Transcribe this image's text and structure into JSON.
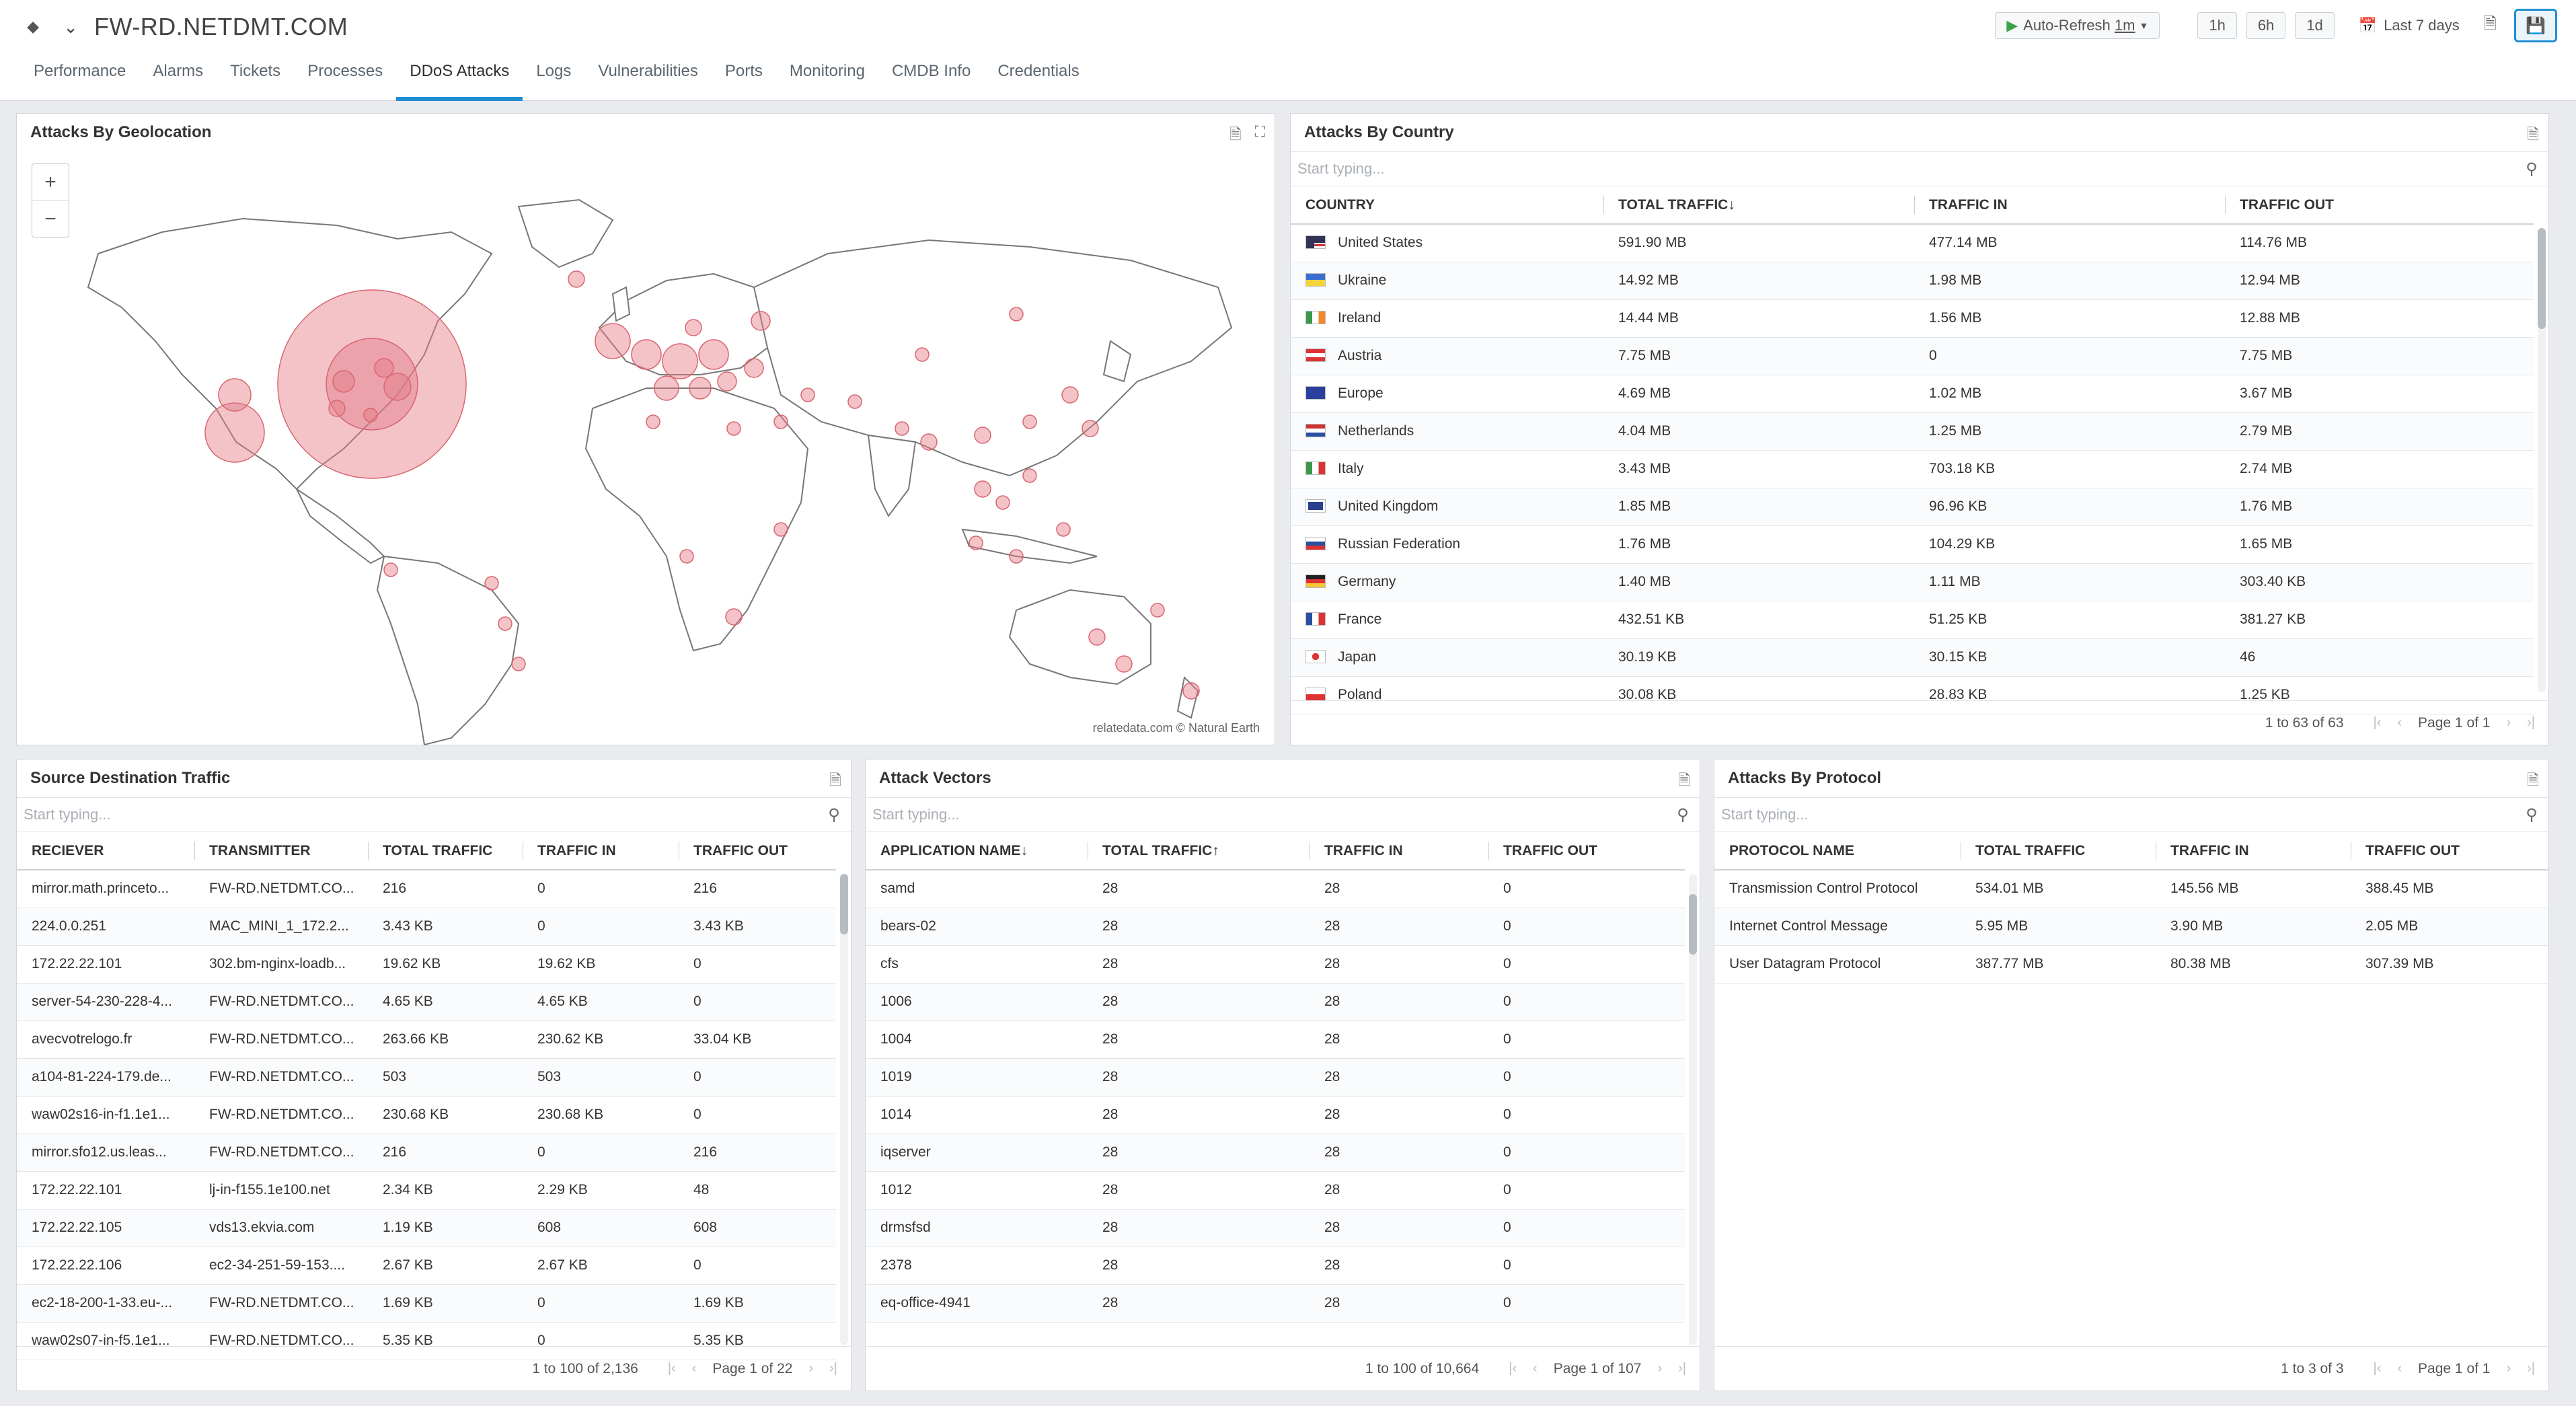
{
  "header": {
    "title": "FW-RD.NETDMT.COM",
    "auto_refresh_label": "Auto-Refresh",
    "auto_refresh_value": "1m",
    "range_buttons": [
      "1h",
      "6h",
      "1d"
    ],
    "time_range": "Last 7 days"
  },
  "tabs": [
    {
      "label": "Performance"
    },
    {
      "label": "Alarms"
    },
    {
      "label": "Tickets"
    },
    {
      "label": "Processes"
    },
    {
      "label": "DDoS Attacks",
      "active": true
    },
    {
      "label": "Logs"
    },
    {
      "label": "Vulnerabilities"
    },
    {
      "label": "Ports"
    },
    {
      "label": "Monitoring"
    },
    {
      "label": "CMDB Info"
    },
    {
      "label": "Credentials"
    }
  ],
  "geo": {
    "title": "Attacks By Geolocation",
    "attribution": "relatedata.com © Natural Earth",
    "marker_color": "#e57a85"
  },
  "country": {
    "title": "Attacks By Country",
    "search_placeholder": "Start typing...",
    "columns": [
      "COUNTRY",
      "TOTAL TRAFFIC",
      "TRAFFIC IN",
      "TRAFFIC OUT"
    ],
    "sort_arrow": "↓",
    "rows": [
      {
        "name": "United States",
        "flag": "us",
        "total": "591.90 MB",
        "in": "477.14 MB",
        "out": "114.76 MB"
      },
      {
        "name": "Ukraine",
        "flag": "ua",
        "total": "14.92 MB",
        "in": "1.98 MB",
        "out": "12.94 MB"
      },
      {
        "name": "Ireland",
        "flag": "ie",
        "total": "14.44 MB",
        "in": "1.56 MB",
        "out": "12.88 MB"
      },
      {
        "name": "Austria",
        "flag": "at",
        "total": "7.75 MB",
        "in": "0",
        "out": "7.75 MB"
      },
      {
        "name": "Europe",
        "flag": "eu",
        "total": "4.69 MB",
        "in": "1.02 MB",
        "out": "3.67 MB"
      },
      {
        "name": "Netherlands",
        "flag": "nl",
        "total": "4.04 MB",
        "in": "1.25 MB",
        "out": "2.79 MB"
      },
      {
        "name": "Italy",
        "flag": "it",
        "total": "3.43 MB",
        "in": "703.18 KB",
        "out": "2.74 MB"
      },
      {
        "name": "United Kingdom",
        "flag": "gb",
        "total": "1.85 MB",
        "in": "96.96 KB",
        "out": "1.76 MB"
      },
      {
        "name": "Russian Federation",
        "flag": "ru",
        "total": "1.76 MB",
        "in": "104.29 KB",
        "out": "1.65 MB"
      },
      {
        "name": "Germany",
        "flag": "de",
        "total": "1.40 MB",
        "in": "1.11 MB",
        "out": "303.40 KB"
      },
      {
        "name": "France",
        "flag": "fr",
        "total": "432.51 KB",
        "in": "51.25 KB",
        "out": "381.27 KB"
      },
      {
        "name": "Japan",
        "flag": "jp",
        "total": "30.19 KB",
        "in": "30.15 KB",
        "out": "46"
      },
      {
        "name": "Poland",
        "flag": "pl",
        "total": "30.08 KB",
        "in": "28.83 KB",
        "out": "1.25 KB"
      }
    ],
    "pager_info": "1 to 63 of 63",
    "page_label": "Page 1 of 1"
  },
  "source": {
    "title": "Source Destination Traffic",
    "search_placeholder": "Start typing...",
    "columns": [
      "RECIEVER",
      "TRANSMITTER",
      "TOTAL TRAFFIC",
      "TRAFFIC IN",
      "TRAFFIC OUT"
    ],
    "rows": [
      [
        "mirror.math.princeto...",
        "FW-RD.NETDMT.CO...",
        "216",
        "0",
        "216"
      ],
      [
        "224.0.0.251",
        "MAC_MINI_1_172.2...",
        "3.43 KB",
        "0",
        "3.43 KB"
      ],
      [
        "172.22.22.101",
        "302.bm-nginx-loadb...",
        "19.62 KB",
        "19.62 KB",
        "0"
      ],
      [
        "server-54-230-228-4...",
        "FW-RD.NETDMT.CO...",
        "4.65 KB",
        "4.65 KB",
        "0"
      ],
      [
        "avecvotrelogo.fr",
        "FW-RD.NETDMT.CO...",
        "263.66 KB",
        "230.62 KB",
        "33.04 KB"
      ],
      [
        "a104-81-224-179.de...",
        "FW-RD.NETDMT.CO...",
        "503",
        "503",
        "0"
      ],
      [
        "waw02s16-in-f1.1e1...",
        "FW-RD.NETDMT.CO...",
        "230.68 KB",
        "230.68 KB",
        "0"
      ],
      [
        "mirror.sfo12.us.leas...",
        "FW-RD.NETDMT.CO...",
        "216",
        "0",
        "216"
      ],
      [
        "172.22.22.101",
        "lj-in-f155.1e100.net",
        "2.34 KB",
        "2.29 KB",
        "48"
      ],
      [
        "172.22.22.105",
        "vds13.ekvia.com",
        "1.19 KB",
        "608",
        "608"
      ],
      [
        "172.22.22.106",
        "ec2-34-251-59-153....",
        "2.67 KB",
        "2.67 KB",
        "0"
      ],
      [
        "ec2-18-200-1-33.eu-...",
        "FW-RD.NETDMT.CO...",
        "1.69 KB",
        "0",
        "1.69 KB"
      ],
      [
        "waw02s07-in-f5.1e1...",
        "FW-RD.NETDMT.CO...",
        "5.35 KB",
        "0",
        "5.35 KB"
      ]
    ],
    "pager_info": "1 to 100 of 2,136",
    "page_label": "Page 1 of 22"
  },
  "vectors": {
    "title": "Attack Vectors",
    "search_placeholder": "Start typing...",
    "columns": [
      "APPLICATION NAME",
      "TOTAL TRAFFIC",
      "TRAFFIC IN",
      "TRAFFIC OUT"
    ],
    "sort_down": "↓",
    "sort_up": "↑",
    "rows": [
      [
        "samd",
        "28",
        "28",
        "0"
      ],
      [
        "bears-02",
        "28",
        "28",
        "0"
      ],
      [
        "cfs",
        "28",
        "28",
        "0"
      ],
      [
        "1006",
        "28",
        "28",
        "0"
      ],
      [
        "1004",
        "28",
        "28",
        "0"
      ],
      [
        "1019",
        "28",
        "28",
        "0"
      ],
      [
        "1014",
        "28",
        "28",
        "0"
      ],
      [
        "iqserver",
        "28",
        "28",
        "0"
      ],
      [
        "1012",
        "28",
        "28",
        "0"
      ],
      [
        "drmsfsd",
        "28",
        "28",
        "0"
      ],
      [
        "2378",
        "28",
        "28",
        "0"
      ],
      [
        "eq-office-4941",
        "28",
        "28",
        "0"
      ]
    ],
    "pager_info": "1 to 100 of 10,664",
    "page_label": "Page 1 of 107"
  },
  "protocol": {
    "title": "Attacks By Protocol",
    "search_placeholder": "Start typing...",
    "columns": [
      "PROTOCOL NAME",
      "TOTAL TRAFFIC",
      "TRAFFIC IN",
      "TRAFFIC OUT"
    ],
    "rows": [
      [
        "Transmission Control Protocol",
        "534.01 MB",
        "145.56 MB",
        "388.45 MB"
      ],
      [
        "Internet Control Message",
        "5.95 MB",
        "3.90 MB",
        "2.05 MB"
      ],
      [
        "User Datagram Protocol",
        "387.77 MB",
        "80.38 MB",
        "307.39 MB"
      ]
    ],
    "pager_info": "1 to 3 of 3",
    "page_label": "Page 1 of 1"
  }
}
